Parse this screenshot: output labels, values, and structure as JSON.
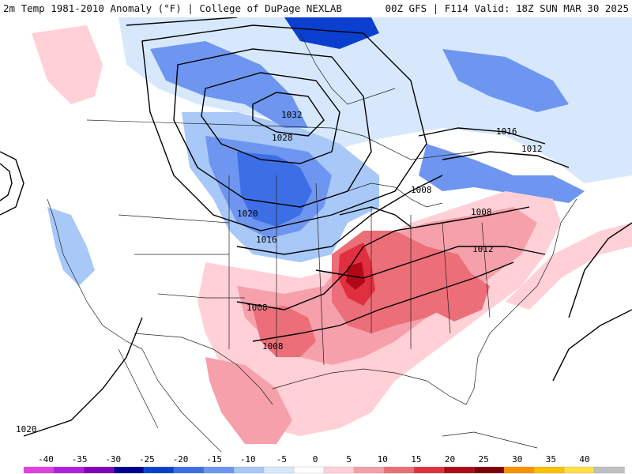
{
  "header": {
    "left": "2m Temp 1981-2010 Anomaly (°F) | College of DuPage NEXLAB",
    "right": "00Z GFS | F114 Valid: 18Z SUN MAR 30 2025"
  },
  "map": {
    "isobar_labels": [
      "1032",
      "1028",
      "1020",
      "1016",
      "1016",
      "1012",
      "1008",
      "1008",
      "1012",
      "1008",
      "1008",
      "1020"
    ]
  },
  "colorbar": {
    "ticks": [
      "-40",
      "-35",
      "-30",
      "-25",
      "-20",
      "-15",
      "-10",
      "-5",
      "0",
      "5",
      "10",
      "15",
      "20",
      "25",
      "30",
      "35",
      "40"
    ],
    "colors": [
      "#e040e0",
      "#b020e0",
      "#8000c0",
      "#000090",
      "#0a3fd0",
      "#3c6ee6",
      "#6e96f0",
      "#a8c8f8",
      "#d8e8fc",
      "#ffffff",
      "#ffd0d6",
      "#f5a0aa",
      "#ec6e78",
      "#e03040",
      "#b00818",
      "#800008",
      "#ff9000",
      "#ffc000",
      "#ffe040",
      "#c0c0c0"
    ]
  }
}
